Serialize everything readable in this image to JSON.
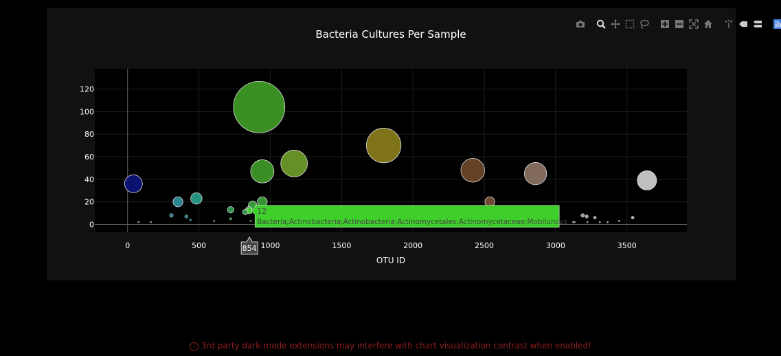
{
  "chart_data": {
    "type": "scatter",
    "subtype": "bubble",
    "title": "Bacteria Cultures Per Sample",
    "xlabel": "OTU ID",
    "ylabel": "",
    "xlim": [
      -230,
      3920
    ],
    "ylim": [
      -7,
      138
    ],
    "xticks": [
      0,
      500,
      1000,
      1500,
      2000,
      2500,
      3000,
      3500
    ],
    "yticks": [
      0,
      20,
      40,
      60,
      80,
      100,
      120
    ],
    "grid": true,
    "background": "#000000",
    "paper": "#111111",
    "points": [
      {
        "x": 41,
        "y": 36,
        "size": 36,
        "color": "#0c127a"
      },
      {
        "x": 353,
        "y": 20,
        "size": 20,
        "color": "#2f8f9e"
      },
      {
        "x": 482,
        "y": 23,
        "size": 23,
        "color": "#2aa08c"
      },
      {
        "x": 307,
        "y": 8,
        "size": 8,
        "color": "#3b8fa0"
      },
      {
        "x": 412,
        "y": 7,
        "size": 7,
        "color": "#30939c"
      },
      {
        "x": 440,
        "y": 4,
        "size": 4,
        "color": "#30969a"
      },
      {
        "x": 77,
        "y": 2,
        "size": 2,
        "color": "#9e9e9e"
      },
      {
        "x": 163,
        "y": 2,
        "size": 2,
        "color": "#9e9e9e"
      },
      {
        "x": 607,
        "y": 3,
        "size": 3,
        "color": "#2c9e80"
      },
      {
        "x": 722,
        "y": 13,
        "size": 13,
        "color": "#33a255"
      },
      {
        "x": 722,
        "y": 5,
        "size": 5,
        "color": "#33a255"
      },
      {
        "x": 825,
        "y": 11,
        "size": 11,
        "color": "#36a24a"
      },
      {
        "x": 849,
        "y": 13,
        "size": 13,
        "color": "#38a245"
      },
      {
        "x": 854,
        "y": 12,
        "size": 12,
        "color": "#3ecf2a"
      },
      {
        "x": 876,
        "y": 17,
        "size": 17,
        "color": "#39a33f"
      },
      {
        "x": 863,
        "y": 3,
        "size": 3,
        "color": "#39a33f"
      },
      {
        "x": 944,
        "y": 20,
        "size": 20,
        "color": "#3c9e37"
      },
      {
        "x": 922,
        "y": 104,
        "size": 104,
        "color": "#3f9b25"
      },
      {
        "x": 944,
        "y": 47,
        "size": 47,
        "color": "#409a28"
      },
      {
        "x": 1167,
        "y": 54,
        "size": 54,
        "color": "#6d9c28"
      },
      {
        "x": 1795,
        "y": 70,
        "size": 70,
        "color": "#8a7d1c"
      },
      {
        "x": 2419,
        "y": 48,
        "size": 48,
        "color": "#6e4828"
      },
      {
        "x": 2539,
        "y": 20,
        "size": 20,
        "color": "#7a4f38"
      },
      {
        "x": 2859,
        "y": 45,
        "size": 45,
        "color": "#8c7264"
      },
      {
        "x": 3123,
        "y": 2,
        "size": 2,
        "color": "#a9a9a9"
      },
      {
        "x": 3133,
        "y": 2,
        "size": 2,
        "color": "#a9a9a9"
      },
      {
        "x": 3190,
        "y": 8,
        "size": 8,
        "color": "#b0b0b0"
      },
      {
        "x": 3218,
        "y": 7,
        "size": 7,
        "color": "#b3b3b3"
      },
      {
        "x": 3223,
        "y": 2,
        "size": 2,
        "color": "#b3b3b3"
      },
      {
        "x": 3275,
        "y": 6,
        "size": 6,
        "color": "#b5b5b5"
      },
      {
        "x": 3310,
        "y": 2,
        "size": 2,
        "color": "#b5b5b5"
      },
      {
        "x": 3364,
        "y": 2,
        "size": 2,
        "color": "#b8b8b8"
      },
      {
        "x": 3445,
        "y": 3,
        "size": 3,
        "color": "#bcbcbc"
      },
      {
        "x": 3540,
        "y": 6,
        "size": 6,
        "color": "#c4c4c4"
      },
      {
        "x": 3640,
        "y": 39,
        "size": 39,
        "color": "#cfcfcf"
      }
    ],
    "hover": {
      "x_label": "854",
      "y_value": "12",
      "text": "Bacteria;Actinobacteria;Actinobacteria;Actinomycetales;Actinomycetaceae;Mobiluncus",
      "color": "#3ecf2a"
    }
  },
  "modebar": {
    "icons": [
      "camera-icon",
      "zoom-icon",
      "pan-icon",
      "box-select-icon",
      "lasso-select-icon",
      "zoom-in-icon",
      "zoom-out-icon",
      "autoscale-icon",
      "reset-axes-icon",
      "spike-lines-icon",
      "hover-closest-icon",
      "hover-compare-icon",
      "plotly-logo-icon"
    ]
  },
  "warning": {
    "icon": "info-icon",
    "text": "3rd party dark-mode extensions may interfere with chart visualization contrast when enabled!"
  }
}
